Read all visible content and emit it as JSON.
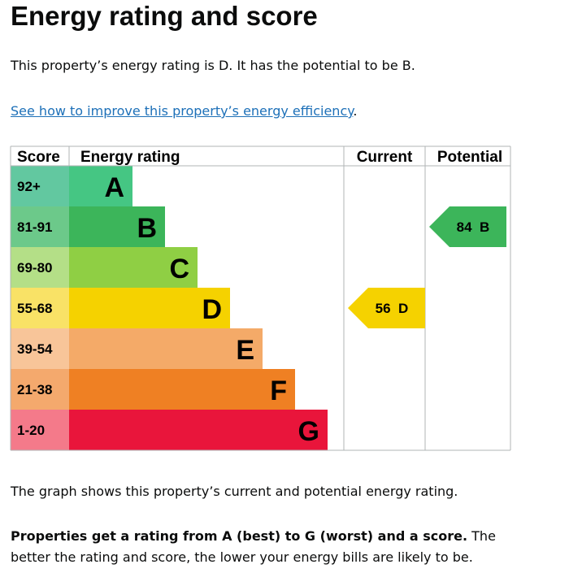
{
  "title": "Energy rating and score",
  "intro": "This property’s energy rating is D. It has the potential to be B.",
  "link": "See how to improve this property’s energy efficiency",
  "link_suffix": ".",
  "caption": "The graph shows this property’s current and potential energy rating.",
  "note_bold": "Properties get a rating from A (best) to G (worst) and a score.",
  "note_rest": " The better the rating and score, the lower your energy bills are likely to be.",
  "chart_data": {
    "type": "bar",
    "headers": [
      "Score",
      "Energy rating",
      "Current",
      "Potential"
    ],
    "categories": [
      "A",
      "B",
      "C",
      "D",
      "E",
      "F",
      "G"
    ],
    "score_ranges": [
      "92+",
      "81-91",
      "69-80",
      "55-68",
      "39-54",
      "21-38",
      "1-20"
    ],
    "bar_colors": [
      "#45c683",
      "#3cb55a",
      "#8fcf44",
      "#f5d200",
      "#f4aa68",
      "#ef8023",
      "#e9153b"
    ],
    "score_colors": [
      "#62c8a0",
      "#6cc98a",
      "#b4df87",
      "#f9e266",
      "#f8c599",
      "#f4a96d",
      "#f47a8a"
    ],
    "current": {
      "score": 56,
      "rating": "D",
      "label": "56  D"
    },
    "potential": {
      "score": 84,
      "rating": "B",
      "label": "84  B"
    }
  }
}
